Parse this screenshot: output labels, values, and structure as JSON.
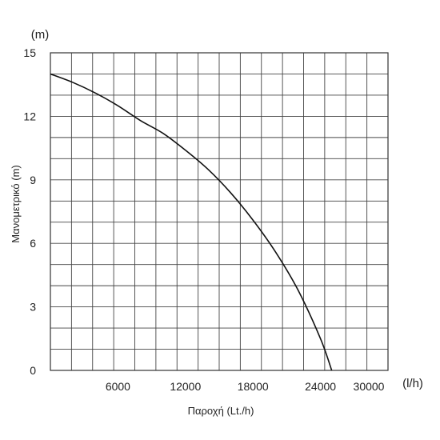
{
  "chart_data": {
    "type": "line",
    "title": "",
    "xlabel": "Παροχή (Lt./h)",
    "ylabel": "Μανομετρικό (m)",
    "x_unit": "(l/h)",
    "y_unit": "(m)",
    "xlim": [
      0,
      30000
    ],
    "ylim": [
      0,
      15
    ],
    "x_ticks": [
      6000,
      12000,
      18000,
      24000,
      30000
    ],
    "y_ticks": [
      0,
      3,
      6,
      9,
      12,
      15
    ],
    "x_tick_labels": [
      "6000",
      "12000",
      "18000",
      "24000",
      "30000"
    ],
    "y_tick_labels": [
      "0",
      "3",
      "6",
      "9",
      "12",
      "15"
    ],
    "grid": true,
    "series": [
      {
        "x": [
          0,
          2000,
          4000,
          6000,
          8000,
          10000,
          12000,
          14000,
          16000,
          18000,
          20000,
          22000,
          24000,
          25000
        ],
        "y": [
          14.0,
          13.6,
          13.1,
          12.5,
          11.8,
          11.2,
          10.4,
          9.5,
          8.4,
          7.1,
          5.6,
          3.8,
          1.5,
          0
        ]
      }
    ]
  }
}
